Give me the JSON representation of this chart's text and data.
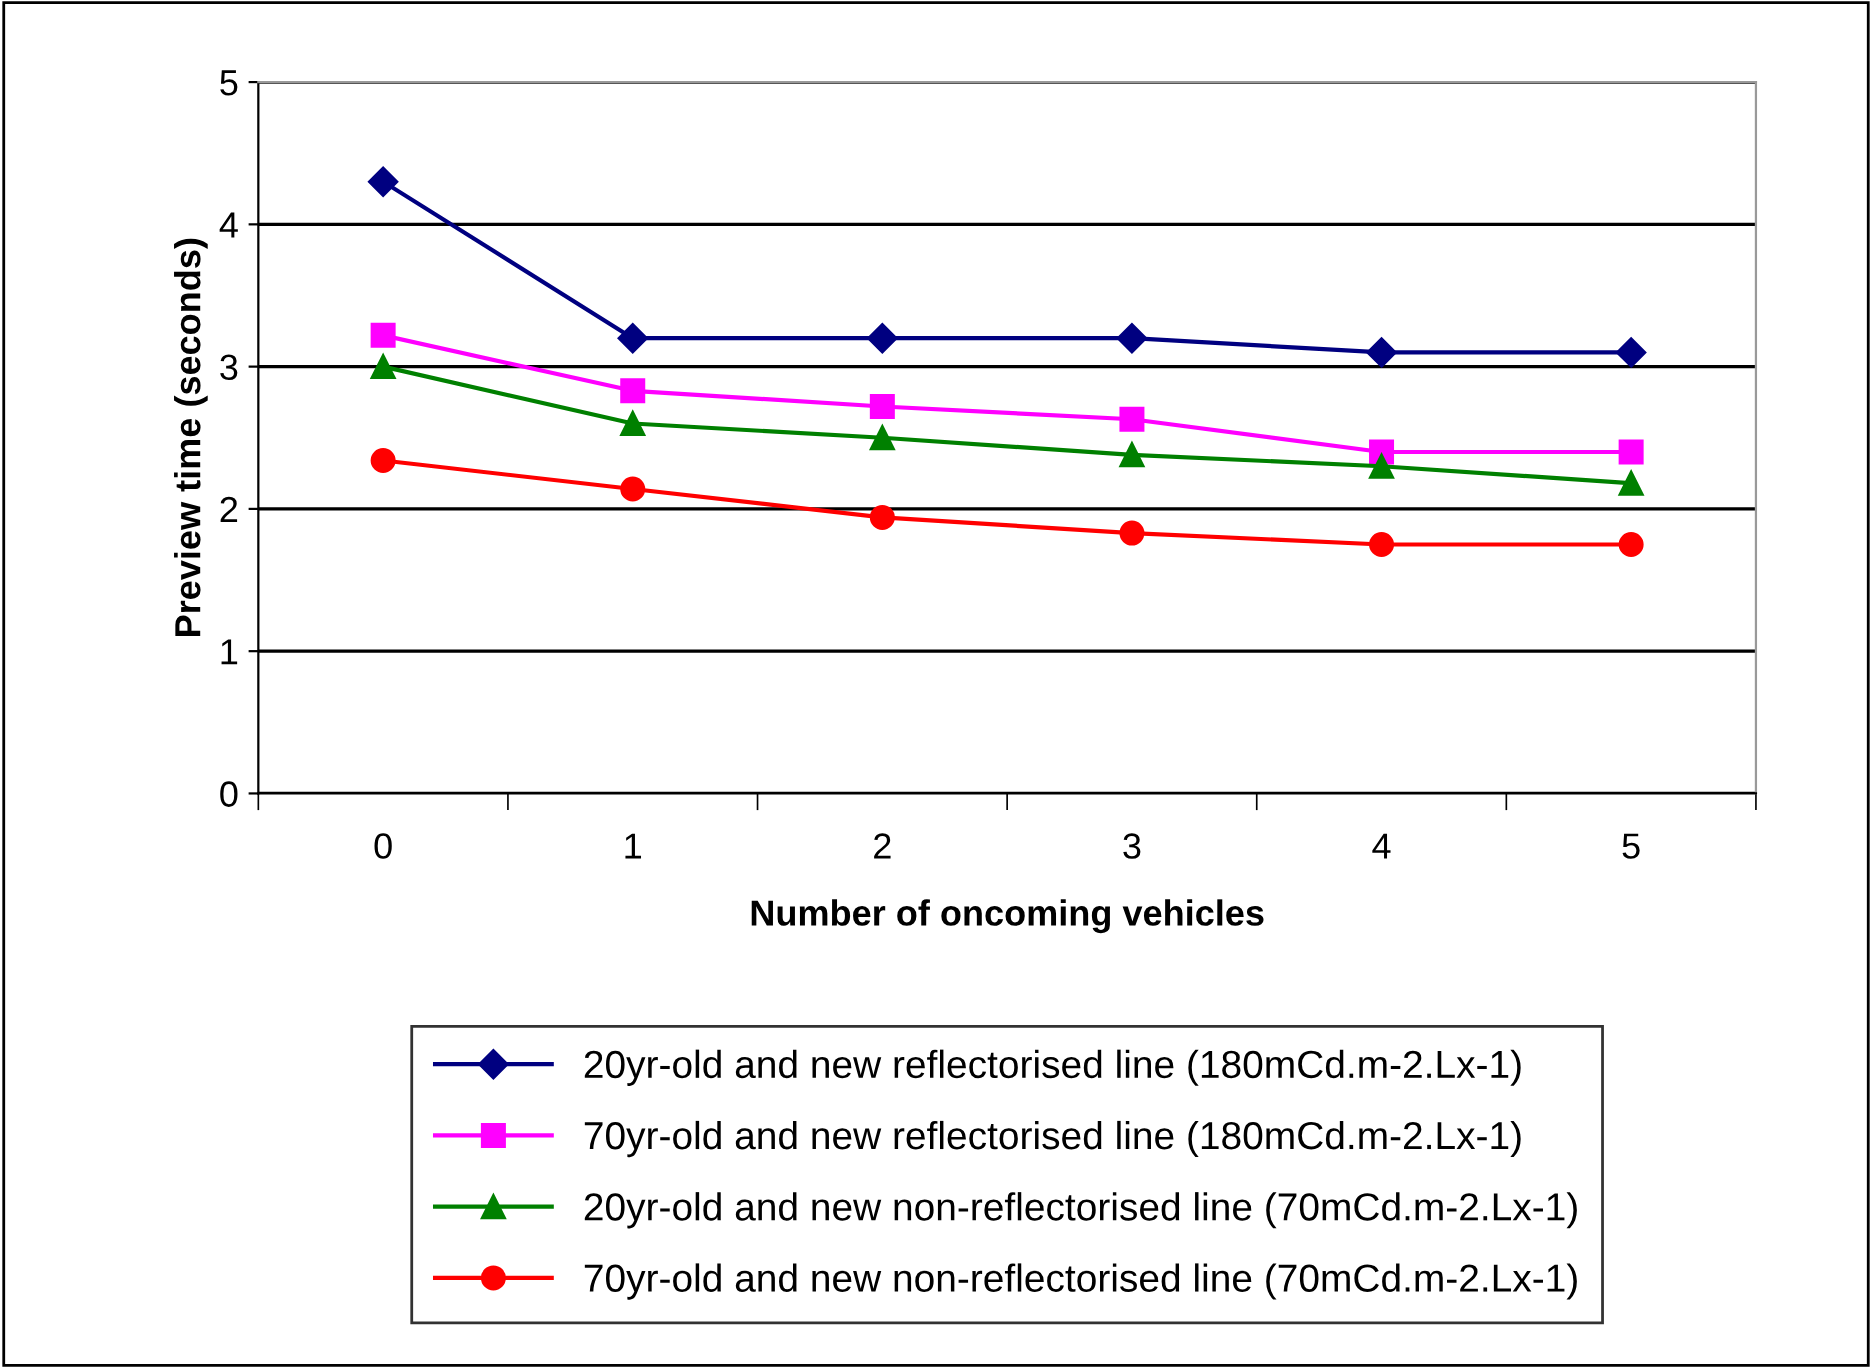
{
  "chart_data": {
    "type": "line",
    "xlabel": "Number of oncoming vehicles",
    "ylabel": "Preview time (seconds)",
    "categories": [
      "0",
      "1",
      "2",
      "3",
      "4",
      "5"
    ],
    "series": [
      {
        "name": "20yr-old and new reflectorised line (180mCd.m-2.Lx-1)",
        "color": "#000080",
        "marker": "diamond",
        "values": [
          4.3,
          3.2,
          3.2,
          3.2,
          3.1,
          3.1
        ]
      },
      {
        "name": "70yr-old and new reflectorised line (180mCd.m-2.Lx-1)",
        "color": "#ff00ff",
        "marker": "square",
        "values": [
          3.22,
          2.83,
          2.72,
          2.63,
          2.4,
          2.4
        ]
      },
      {
        "name": "20yr-old and new non-reflectorised line (70mCd.m-2.Lx-1)",
        "color": "#008000",
        "marker": "triangle",
        "values": [
          3.0,
          2.6,
          2.5,
          2.38,
          2.3,
          2.18
        ]
      },
      {
        "name": "70yr-old and new non-reflectorised line (70mCd.m-2.Lx-1)",
        "color": "#ff0000",
        "marker": "circle",
        "values": [
          2.34,
          2.14,
          1.94,
          1.83,
          1.75,
          1.75
        ]
      }
    ],
    "ylim": [
      0,
      5
    ],
    "yticks": [
      0,
      1,
      2,
      3,
      4,
      5
    ],
    "grid": "y",
    "legend": "bottom"
  }
}
